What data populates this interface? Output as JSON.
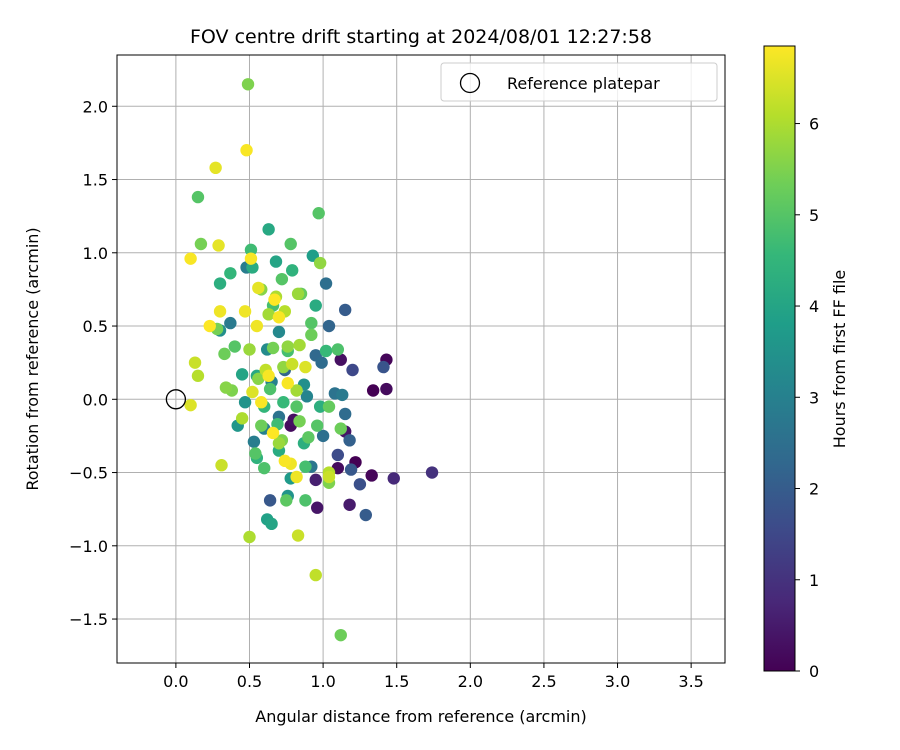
{
  "chart_data": {
    "type": "scatter",
    "title": "FOV centre drift starting at 2024/08/01 12:27:58",
    "xlabel": "Angular distance from reference (arcmin)",
    "ylabel": "Rotation from reference (arcmin)",
    "xlim": [
      -0.4,
      3.73
    ],
    "ylim": [
      -1.8,
      2.35
    ],
    "x_ticks": [
      0.0,
      0.5,
      1.0,
      1.5,
      2.0,
      2.5,
      3.0,
      3.5
    ],
    "x_tick_labels": [
      "0.0",
      "0.5",
      "1.0",
      "1.5",
      "2.0",
      "2.5",
      "3.0",
      "3.5"
    ],
    "y_ticks": [
      -1.5,
      -1.0,
      -0.5,
      0.0,
      0.5,
      1.0,
      1.5,
      2.0
    ],
    "y_tick_labels": [
      "−1.5",
      "−1.0",
      "−0.5",
      "0.0",
      "0.5",
      "1.0",
      "1.5",
      "2.0"
    ],
    "grid": true,
    "legend": {
      "position": "top-right",
      "entries": [
        {
          "label": "Reference platepar",
          "marker": "open-circle"
        }
      ]
    },
    "reference_point": {
      "x": 0.0,
      "y": 0.0
    },
    "colorbar": {
      "label": "Hours from first FF file",
      "colormap": "viridis",
      "range": [
        0,
        6.85
      ],
      "ticks": [
        0,
        1,
        2,
        3,
        4,
        5,
        6
      ],
      "tick_labels": [
        "0",
        "1",
        "2",
        "3",
        "4",
        "5",
        "6"
      ]
    },
    "colormap_stops": [
      "#440154",
      "#482878",
      "#3e4989",
      "#31688e",
      "#26828e",
      "#1f9e89",
      "#35b779",
      "#6ece58",
      "#b5de2b",
      "#fde725"
    ],
    "points": [
      [
        1.43,
        0.27,
        0.1
      ],
      [
        1.34,
        0.06,
        0.0
      ],
      [
        1.43,
        0.07,
        0.2
      ],
      [
        1.33,
        -0.52,
        0.1
      ],
      [
        1.22,
        -0.43,
        0.0
      ],
      [
        1.74,
        -0.5,
        1.0
      ],
      [
        1.48,
        -0.54,
        0.8
      ],
      [
        1.12,
        0.27,
        0.3
      ],
      [
        1.1,
        -0.47,
        0.2
      ],
      [
        0.96,
        -0.74,
        0.4
      ],
      [
        1.18,
        -0.72,
        0.5
      ],
      [
        0.95,
        -0.55,
        0.6
      ],
      [
        0.8,
        -0.14,
        0.3
      ],
      [
        0.78,
        -0.18,
        0.2
      ],
      [
        1.15,
        -0.22,
        0.4
      ],
      [
        1.2,
        0.2,
        1.5
      ],
      [
        1.41,
        0.22,
        1.8
      ],
      [
        1.29,
        -0.79,
        2.0
      ],
      [
        1.25,
        -0.58,
        1.7
      ],
      [
        1.19,
        -0.48,
        1.9
      ],
      [
        1.15,
        0.61,
        2.0
      ],
      [
        1.02,
        0.79,
        2.5
      ],
      [
        1.04,
        0.5,
        2.2
      ],
      [
        0.95,
        0.3,
        2.3
      ],
      [
        1.08,
        0.04,
        2.6
      ],
      [
        1.13,
        0.03,
        2.8
      ],
      [
        1.15,
        -0.1,
        2.4
      ],
      [
        1.18,
        -0.28,
        2.1
      ],
      [
        1.1,
        -0.38,
        1.6
      ],
      [
        1.0,
        -0.25,
        2.5
      ],
      [
        0.92,
        -0.46,
        2.7
      ],
      [
        0.7,
        -0.12,
        2.6
      ],
      [
        0.6,
        -0.2,
        3.0
      ],
      [
        0.53,
        -0.29,
        2.9
      ],
      [
        0.48,
        0.9,
        2.9
      ],
      [
        0.74,
        0.2,
        2.2
      ],
      [
        0.64,
        -0.69,
        1.9
      ],
      [
        0.99,
        0.25,
        2.4
      ],
      [
        0.89,
        0.02,
        3.1
      ],
      [
        0.7,
        0.46,
        3.2
      ],
      [
        0.62,
        0.34,
        3.3
      ],
      [
        0.37,
        0.52,
        2.8
      ],
      [
        0.3,
        0.47,
        3.4
      ],
      [
        0.42,
        -0.18,
        3.6
      ],
      [
        0.47,
        -0.02,
        3.5
      ],
      [
        0.76,
        -0.66,
        3.5
      ],
      [
        0.78,
        -0.54,
        3.7
      ],
      [
        0.93,
        0.98,
        3.8
      ],
      [
        0.87,
        0.1,
        3.4
      ],
      [
        0.65,
        0.12,
        3.0
      ],
      [
        0.62,
        -0.82,
        3.9
      ],
      [
        0.65,
        -0.85,
        4.0
      ],
      [
        0.63,
        1.16,
        4.1
      ],
      [
        0.95,
        0.64,
        4.2
      ],
      [
        0.87,
        -0.3,
        4.3
      ],
      [
        0.79,
        0.88,
        4.4
      ],
      [
        0.68,
        0.94,
        4.0
      ],
      [
        0.52,
        0.9,
        4.2
      ],
      [
        0.37,
        0.86,
        4.5
      ],
      [
        0.3,
        0.79,
        4.3
      ],
      [
        0.55,
        0.16,
        4.1
      ],
      [
        0.45,
        0.17,
        4.0
      ],
      [
        0.6,
        -0.05,
        4.5
      ],
      [
        0.7,
        -0.35,
        4.2
      ],
      [
        0.55,
        -0.4,
        4.4
      ],
      [
        1.02,
        0.33,
        4.6
      ],
      [
        0.98,
        -0.05,
        4.3
      ],
      [
        0.97,
        1.27,
        5.0
      ],
      [
        0.51,
        1.02,
        4.7
      ],
      [
        0.66,
        0.64,
        4.8
      ],
      [
        0.72,
        0.82,
        5.0
      ],
      [
        0.85,
        0.72,
        5.2
      ],
      [
        0.78,
        1.06,
        5.0
      ],
      [
        0.92,
        0.52,
        5.0
      ],
      [
        0.76,
        0.33,
        4.8
      ],
      [
        0.69,
        -0.17,
        4.7
      ],
      [
        0.6,
        -0.47,
        4.9
      ],
      [
        0.54,
        -0.37,
        5.0
      ],
      [
        0.88,
        -0.46,
        4.8
      ],
      [
        0.88,
        -0.69,
        4.9
      ],
      [
        0.75,
        -0.69,
        5.1
      ],
      [
        0.96,
        -0.18,
        5.0
      ],
      [
        1.04,
        -0.05,
        5.2
      ],
      [
        1.1,
        0.34,
        4.9
      ],
      [
        0.15,
        1.38,
        5.0
      ],
      [
        0.4,
        0.36,
        5.0
      ],
      [
        0.33,
        0.31,
        5.3
      ],
      [
        0.28,
        0.48,
        5.4
      ],
      [
        0.38,
        0.06,
        5.5
      ],
      [
        0.34,
        0.08,
        5.6
      ],
      [
        0.58,
        -0.18,
        5.3
      ],
      [
        0.72,
        -0.28,
        5.5
      ],
      [
        0.84,
        -0.15,
        5.4
      ],
      [
        1.12,
        -0.2,
        5.3
      ],
      [
        1.04,
        -0.57,
        5.5
      ],
      [
        1.12,
        -1.61,
        5.3
      ],
      [
        0.98,
        0.93,
        5.7
      ],
      [
        0.45,
        -0.13,
        6.0
      ],
      [
        0.5,
        0.34,
        5.8
      ],
      [
        0.63,
        0.58,
        5.9
      ],
      [
        0.68,
        0.7,
        6.0
      ],
      [
        0.74,
        0.6,
        6.1
      ],
      [
        0.76,
        0.36,
        5.7
      ],
      [
        0.83,
        0.72,
        5.8
      ],
      [
        1.04,
        -0.5,
        6.1
      ],
      [
        1.04,
        -0.53,
        6.3
      ],
      [
        0.73,
        0.22,
        5.7
      ],
      [
        0.82,
        0.06,
        5.9
      ],
      [
        0.95,
        -1.2,
        6.2
      ],
      [
        0.83,
        -0.93,
        6.3
      ],
      [
        0.5,
        -0.94,
        6.0
      ],
      [
        0.49,
        2.15,
        5.5
      ],
      [
        0.17,
        1.06,
        5.4
      ],
      [
        0.13,
        0.25,
        6.3
      ],
      [
        0.15,
        0.16,
        6.1
      ],
      [
        0.1,
        -0.04,
        6.5
      ],
      [
        0.3,
        0.6,
        6.7
      ],
      [
        0.31,
        -0.45,
        6.3
      ],
      [
        0.48,
        1.7,
        6.8
      ],
      [
        0.27,
        1.58,
        6.6
      ],
      [
        0.1,
        0.96,
        6.8
      ],
      [
        0.29,
        1.05,
        6.6
      ],
      [
        0.51,
        0.96,
        6.8
      ],
      [
        0.55,
        0.5,
        6.7
      ],
      [
        0.67,
        0.68,
        6.9
      ],
      [
        0.7,
        0.56,
        6.8
      ],
      [
        0.63,
        0.16,
        6.8
      ],
      [
        0.58,
        -0.02,
        6.8
      ],
      [
        0.76,
        0.11,
        6.8
      ],
      [
        0.66,
        -0.23,
        6.9
      ],
      [
        0.74,
        -0.42,
        6.8
      ],
      [
        0.78,
        -0.44,
        6.7
      ],
      [
        0.82,
        -0.53,
        6.7
      ],
      [
        0.23,
        0.5,
        6.9
      ],
      [
        0.56,
        0.76,
        6.6
      ],
      [
        0.47,
        0.6,
        6.7
      ],
      [
        0.52,
        0.05,
        6.5
      ],
      [
        0.79,
        0.24,
        6.3
      ],
      [
        0.61,
        0.2,
        6.2
      ],
      [
        0.88,
        0.22,
        6.5
      ],
      [
        0.56,
        0.14,
        5.6
      ],
      [
        0.82,
        -0.05,
        5.0
      ],
      [
        0.66,
        0.35,
        5.4
      ],
      [
        0.92,
        0.44,
        5.3
      ],
      [
        0.73,
        -0.02,
        4.6
      ],
      [
        0.58,
        0.75,
        5.6
      ],
      [
        0.84,
        0.37,
        5.9
      ],
      [
        0.9,
        -0.26,
        5.1
      ],
      [
        0.64,
        0.07,
        4.9
      ],
      [
        0.7,
        -0.3,
        5.8
      ]
    ]
  }
}
